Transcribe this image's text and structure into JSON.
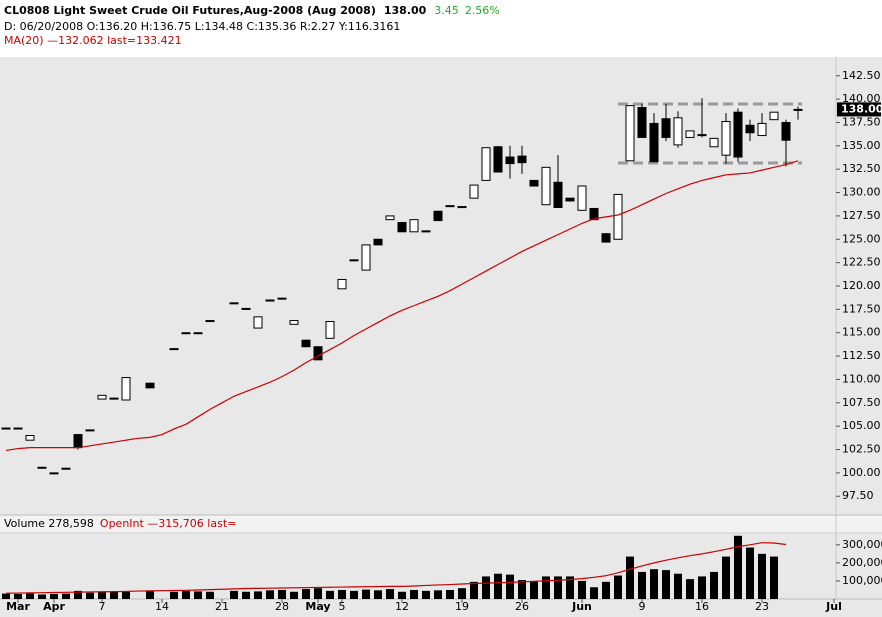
{
  "chart_data": [
    {
      "type": "candlestick",
      "title": "CL0808 Light Sweet Crude Oil Futures,Aug-2008 (Aug 2008)",
      "last": "138.00",
      "change": "3.45",
      "change_pct": "2.56%",
      "info": "D: 06/20/2008 O:136.20 H:136.75 L:134.48 C:135.36 R:2.27 Y:116.3161",
      "categories": [
        null,
        "Mar",
        null,
        null,
        "Apr",
        null,
        null,
        null,
        "7",
        null,
        null,
        null,
        null,
        "14",
        null,
        null,
        null,
        null,
        "21",
        null,
        null,
        null,
        null,
        "28",
        null,
        null,
        "May",
        null,
        "5",
        null,
        null,
        null,
        null,
        "12",
        null,
        null,
        null,
        null,
        "19",
        null,
        null,
        null,
        null,
        "26",
        null,
        null,
        null,
        null,
        "Jun",
        null,
        null,
        null,
        null,
        "9",
        null,
        null,
        null,
        null,
        "16",
        null,
        null,
        null,
        null,
        "23",
        null,
        null,
        null,
        null,
        null,
        "Jul"
      ],
      "open": [
        104.8,
        104.8,
        103.5,
        100.6,
        100.0,
        100.5,
        104.1,
        104.6,
        107.9,
        108.0,
        107.8,
        null,
        109.6,
        null,
        113.3,
        115.0,
        115.0,
        116.3,
        null,
        118.2,
        117.6,
        115.5,
        118.5,
        118.7,
        115.9,
        114.2,
        113.5,
        114.4,
        119.7,
        122.8,
        121.7,
        125.0,
        127.1,
        126.8,
        125.8,
        125.9,
        128.0,
        128.6,
        128.5,
        129.4,
        131.3,
        134.9,
        133.8,
        133.9,
        131.3,
        128.7,
        131.1,
        129.4,
        128.1,
        128.3,
        125.6,
        125.0,
        133.4,
        139.1,
        137.4,
        137.9,
        135.1,
        135.9,
        136.2,
        134.9,
        134.0,
        138.6,
        137.2,
        136.1,
        137.8,
        137.5,
        138.9,
        null,
        null,
        null
      ],
      "high": [
        104.8,
        104.8,
        104.0,
        100.6,
        100.0,
        100.5,
        104.1,
        104.6,
        108.3,
        108.0,
        110.2,
        null,
        109.6,
        null,
        113.3,
        115.0,
        115.0,
        116.3,
        null,
        118.2,
        117.6,
        116.7,
        118.5,
        118.7,
        116.3,
        114.2,
        113.5,
        116.2,
        120.7,
        122.8,
        124.4,
        125.0,
        127.5,
        126.8,
        127.1,
        125.9,
        128.0,
        128.6,
        128.5,
        130.8,
        134.8,
        135.0,
        135.0,
        135.0,
        131.3,
        132.7,
        134.0,
        129.4,
        130.7,
        128.3,
        125.6,
        129.8,
        139.3,
        139.5,
        138.5,
        139.5,
        138.7,
        136.6,
        140.1,
        135.8,
        138.5,
        139.0,
        137.8,
        138.5,
        138.6,
        137.8,
        139.2,
        null,
        null,
        null
      ],
      "low": [
        104.8,
        104.8,
        103.5,
        100.6,
        100.0,
        100.5,
        102.5,
        104.6,
        107.9,
        108.0,
        107.8,
        null,
        109.1,
        null,
        113.3,
        115.0,
        115.0,
        116.3,
        null,
        118.2,
        117.6,
        115.5,
        118.5,
        118.7,
        115.9,
        113.5,
        112.1,
        114.4,
        119.7,
        122.8,
        121.7,
        124.4,
        127.1,
        125.8,
        125.8,
        125.9,
        127.0,
        128.6,
        128.5,
        129.4,
        131.3,
        132.2,
        131.5,
        132.0,
        130.7,
        128.7,
        128.4,
        129.1,
        128.1,
        127.1,
        124.7,
        125.0,
        133.4,
        135.9,
        133.3,
        135.5,
        134.8,
        135.9,
        135.9,
        134.9,
        133.1,
        133.3,
        135.5,
        136.1,
        137.8,
        132.8,
        137.8,
        null,
        null,
        null
      ],
      "close": [
        104.8,
        104.8,
        104.0,
        100.6,
        100.0,
        100.5,
        102.7,
        104.6,
        108.3,
        108.0,
        110.2,
        null,
        109.1,
        null,
        113.3,
        115.0,
        115.0,
        116.3,
        null,
        118.2,
        117.6,
        116.7,
        118.5,
        118.7,
        116.3,
        113.5,
        112.1,
        116.2,
        120.7,
        122.8,
        124.4,
        124.4,
        127.5,
        125.8,
        127.1,
        125.9,
        127.0,
        128.6,
        128.5,
        130.8,
        134.8,
        132.2,
        133.1,
        133.2,
        130.7,
        132.7,
        128.4,
        129.1,
        130.7,
        127.1,
        124.7,
        129.8,
        139.3,
        135.9,
        133.3,
        135.9,
        138.0,
        136.6,
        136.2,
        135.8,
        137.6,
        133.8,
        136.4,
        137.4,
        138.6,
        135.6,
        138.9,
        null,
        null,
        null
      ],
      "up_color": "#ffffff",
      "down_color": "#000000",
      "series": [
        {
          "name": "MA(20) —132.062 last=133.421",
          "color": "#cc0000",
          "values": [
            102.4,
            102.6,
            102.7,
            102.7,
            102.7,
            102.7,
            102.7,
            102.9,
            103.1,
            103.3,
            103.5,
            103.7,
            103.8,
            104.1,
            104.7,
            105.2,
            106.0,
            106.8,
            107.5,
            108.2,
            108.7,
            109.2,
            109.7,
            110.3,
            111.0,
            111.8,
            112.5,
            113.2,
            113.9,
            114.7,
            115.4,
            116.1,
            116.8,
            117.4,
            117.9,
            118.4,
            118.9,
            119.5,
            120.2,
            120.9,
            121.6,
            122.3,
            123.0,
            123.7,
            124.3,
            124.9,
            125.5,
            126.1,
            126.7,
            127.2,
            127.4,
            127.6,
            128.1,
            128.7,
            129.3,
            129.9,
            130.4,
            130.9,
            131.3,
            131.6,
            131.9,
            132.0,
            132.1,
            132.4,
            132.7,
            133.0,
            133.4,
            null,
            null,
            null
          ]
        }
      ],
      "ylim": [
        95.6,
        144.4
      ],
      "yticks": [
        {
          "value": 97.5,
          "label": "97.50"
        },
        {
          "value": 100,
          "label": "100.00"
        },
        {
          "value": 102.5,
          "label": "102.50"
        },
        {
          "value": 105,
          "label": "105.00"
        },
        {
          "value": 107.5,
          "label": "107.50"
        },
        {
          "value": 110,
          "label": "110.00"
        },
        {
          "value": 112.5,
          "label": "112.50"
        },
        {
          "value": 115,
          "label": "115.00"
        },
        {
          "value": 117.5,
          "label": "117.50"
        },
        {
          "value": 120,
          "label": "120.00"
        },
        {
          "value": 122.5,
          "label": "122.50"
        },
        {
          "value": 125,
          "label": "125.00"
        },
        {
          "value": 127.5,
          "label": "127.50"
        },
        {
          "value": 130,
          "label": "130.00"
        },
        {
          "value": 132.5,
          "label": "132.50"
        },
        {
          "value": 135,
          "label": "135.00"
        },
        {
          "value": 137.5,
          "label": "137.50"
        },
        {
          "value": 140,
          "label": "140.00"
        },
        {
          "value": 142.5,
          "label": "142.50"
        }
      ]
    },
    {
      "type": "bar",
      "title": "Volume 278,598",
      "color": "#000000",
      "values": [
        30000,
        28000,
        30000,
        25000,
        28000,
        30000,
        45000,
        35000,
        38000,
        40000,
        42000,
        null,
        45000,
        null,
        40000,
        45000,
        42000,
        40000,
        null,
        45000,
        40000,
        42000,
        48000,
        50000,
        40000,
        55000,
        60000,
        45000,
        50000,
        45000,
        52000,
        48000,
        55000,
        40000,
        50000,
        45000,
        48000,
        50000,
        60000,
        95000,
        125000,
        140000,
        135000,
        105000,
        100000,
        125000,
        125000,
        125000,
        100000,
        65000,
        95000,
        130000,
        235000,
        150000,
        165000,
        160000,
        140000,
        110000,
        125000,
        150000,
        235000,
        350000,
        285000,
        250000,
        235000,
        null,
        null,
        null,
        null,
        null
      ],
      "series": [
        {
          "name": "OpenInt —315,706 last=",
          "color": "#cc0000",
          "values": [
            32000,
            33000,
            34000,
            35000,
            36000,
            37000,
            38000,
            39000,
            40000,
            41000,
            42000,
            44000,
            45000,
            46000,
            47000,
            48000,
            50000,
            52000,
            54000,
            56000,
            58000,
            59000,
            60000,
            61000,
            62000,
            63000,
            64000,
            65000,
            66000,
            67000,
            68000,
            69000,
            70000,
            70000,
            72000,
            75000,
            78000,
            80000,
            83000,
            86000,
            88000,
            90000,
            92000,
            95000,
            98000,
            101000,
            104000,
            108000,
            113000,
            120000,
            129000,
            145000,
            165000,
            183000,
            200000,
            215000,
            228000,
            240000,
            250000,
            262000,
            275000,
            290000,
            300000,
            312000,
            310000,
            302000,
            null,
            null,
            null,
            null
          ]
        }
      ],
      "ylim": [
        0,
        360000
      ],
      "yticks": [
        {
          "value": 100000,
          "label": "100,000"
        },
        {
          "value": 200000,
          "label": "200,000"
        },
        {
          "value": 300000,
          "label": "300,000"
        }
      ]
    }
  ]
}
